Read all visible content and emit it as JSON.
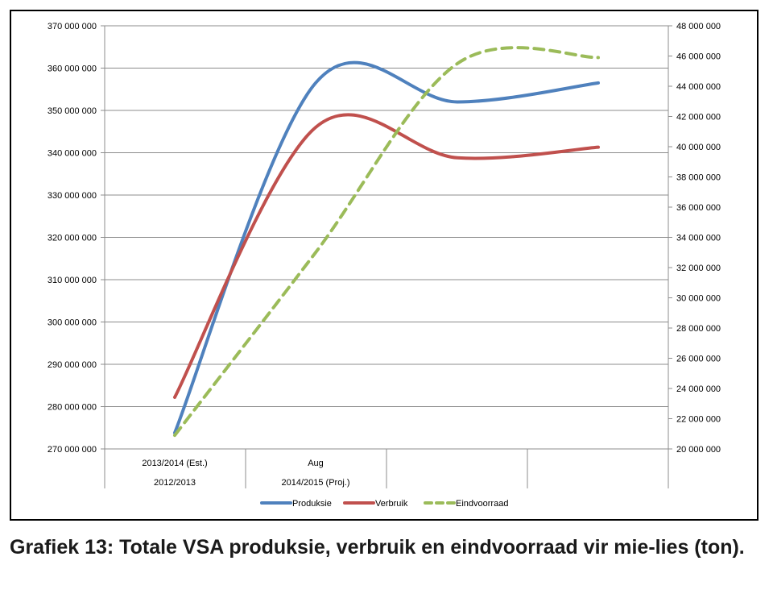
{
  "chart_data": {
    "type": "line",
    "categories_row1": [
      "2013/2014 (Est.)",
      "Aug",
      "",
      ""
    ],
    "categories_row2": [
      "2012/2013",
      "2014/2015 (Proj.)",
      "",
      ""
    ],
    "x": [
      0,
      1,
      2,
      3
    ],
    "y_left": {
      "min": 270000000,
      "max": 370000000,
      "step": 10000000,
      "ticks": [
        "270 000 000",
        "280 000 000",
        "290 000 000",
        "300 000 000",
        "310 000 000",
        "320 000 000",
        "330 000 000",
        "340 000 000",
        "350 000 000",
        "360 000 000",
        "370 000 000"
      ]
    },
    "y_right": {
      "min": 20000000,
      "max": 48000000,
      "step": 2000000,
      "ticks": [
        "20 000 000",
        "22 000 000",
        "24 000 000",
        "26 000 000",
        "28 000 000",
        "30 000 000",
        "32 000 000",
        "34 000 000",
        "36 000 000",
        "38 000 000",
        "40 000 000",
        "42 000 000",
        "44 000 000",
        "46 000 000",
        "48 000 000"
      ]
    },
    "grid": true,
    "legend_position": "bottom",
    "series": [
      {
        "name": "Produksie",
        "axis": "left",
        "color": "#4f81bd",
        "dash": "solid",
        "values": [
          273800000,
          356500000,
          352000000,
          356500000
        ]
      },
      {
        "name": "Verbruik",
        "axis": "left",
        "color": "#c0504d",
        "dash": "solid",
        "values": [
          282200000,
          346000000,
          338800000,
          341300000
        ]
      },
      {
        "name": "Eindvoorraad",
        "axis": "right",
        "color": "#9bbb59",
        "dash": "dashed",
        "values": [
          20900000,
          33000000,
          45500000,
          45900000
        ]
      }
    ]
  },
  "caption": "Grafiek 13: Totale VSA produksie, verbruik en eindvoorraad vir mie-lies (ton)."
}
